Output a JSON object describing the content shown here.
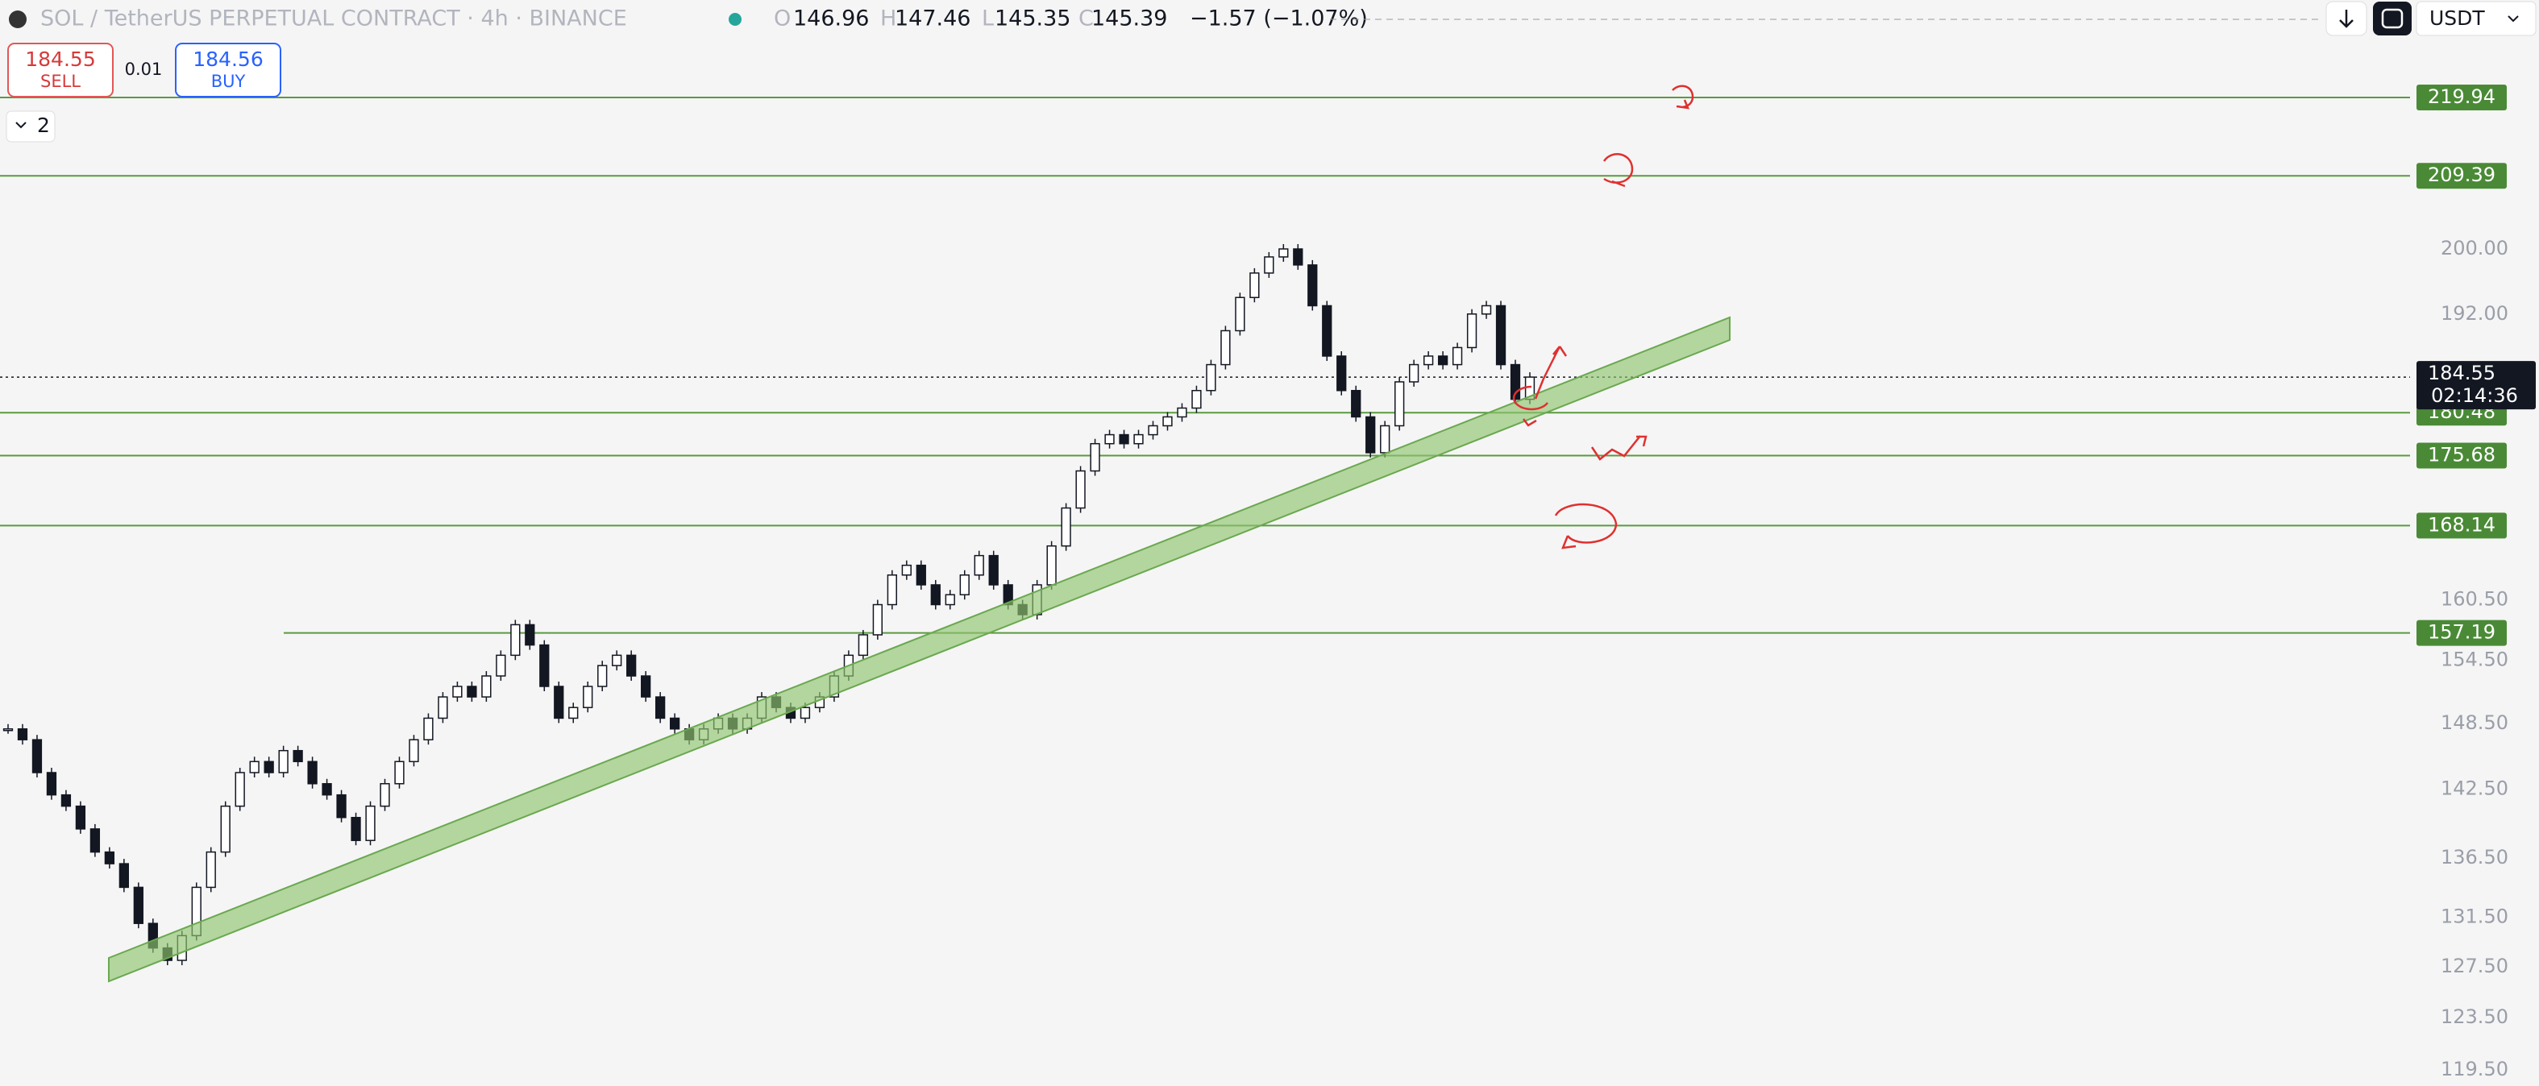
{
  "header": {
    "symbol": "SOL / TetherUS PERPETUAL CONTRACT · 4h · BINANCE",
    "open_label": "O",
    "open": "146.96",
    "high_label": "H",
    "high": "147.46",
    "low_label": "L",
    "low": "145.35",
    "close_label": "C",
    "close": "145.39",
    "change": "−1.57 (−1.07%)",
    "currency": "USDT"
  },
  "trade": {
    "sell_price": "184.55",
    "sell_label": "SELL",
    "spread": "0.01",
    "buy_price": "184.56",
    "buy_label": "BUY"
  },
  "indicators_count": "2",
  "price_axis": {
    "scale": "log",
    "ticks": [
      "200.00",
      "192.00",
      "160.50",
      "154.50",
      "148.50",
      "142.50",
      "136.50",
      "131.50",
      "127.50",
      "123.50",
      "119.50"
    ]
  },
  "levels": [
    "219.94",
    "209.39",
    "180.48",
    "175.68",
    "168.14",
    "157.19"
  ],
  "last_price": {
    "price": "184.55",
    "countdown": "02:14:36"
  },
  "candles": {
    "closes": [
      148,
      147,
      144,
      142,
      141,
      139,
      137,
      136,
      134,
      131,
      129,
      128,
      130,
      134,
      137,
      141,
      144,
      145,
      144,
      146,
      145,
      143,
      142,
      140,
      138,
      141,
      143,
      145,
      147,
      149,
      151,
      152,
      151,
      153,
      155,
      158,
      156,
      152,
      149,
      150,
      152,
      154,
      155,
      153,
      151,
      149,
      148,
      147,
      148,
      149,
      148,
      149,
      151,
      150,
      149,
      150,
      151,
      153,
      155,
      157,
      160,
      163,
      164,
      162,
      160,
      161,
      163,
      165,
      162,
      160,
      159,
      162,
      166,
      170,
      174,
      177,
      178,
      177,
      178,
      179,
      180,
      181,
      183,
      186,
      190,
      194,
      197,
      199,
      200,
      198,
      193,
      187,
      183,
      180,
      176,
      179,
      184,
      186,
      187,
      186,
      188,
      192,
      193,
      186,
      182,
      184.55
    ]
  }
}
